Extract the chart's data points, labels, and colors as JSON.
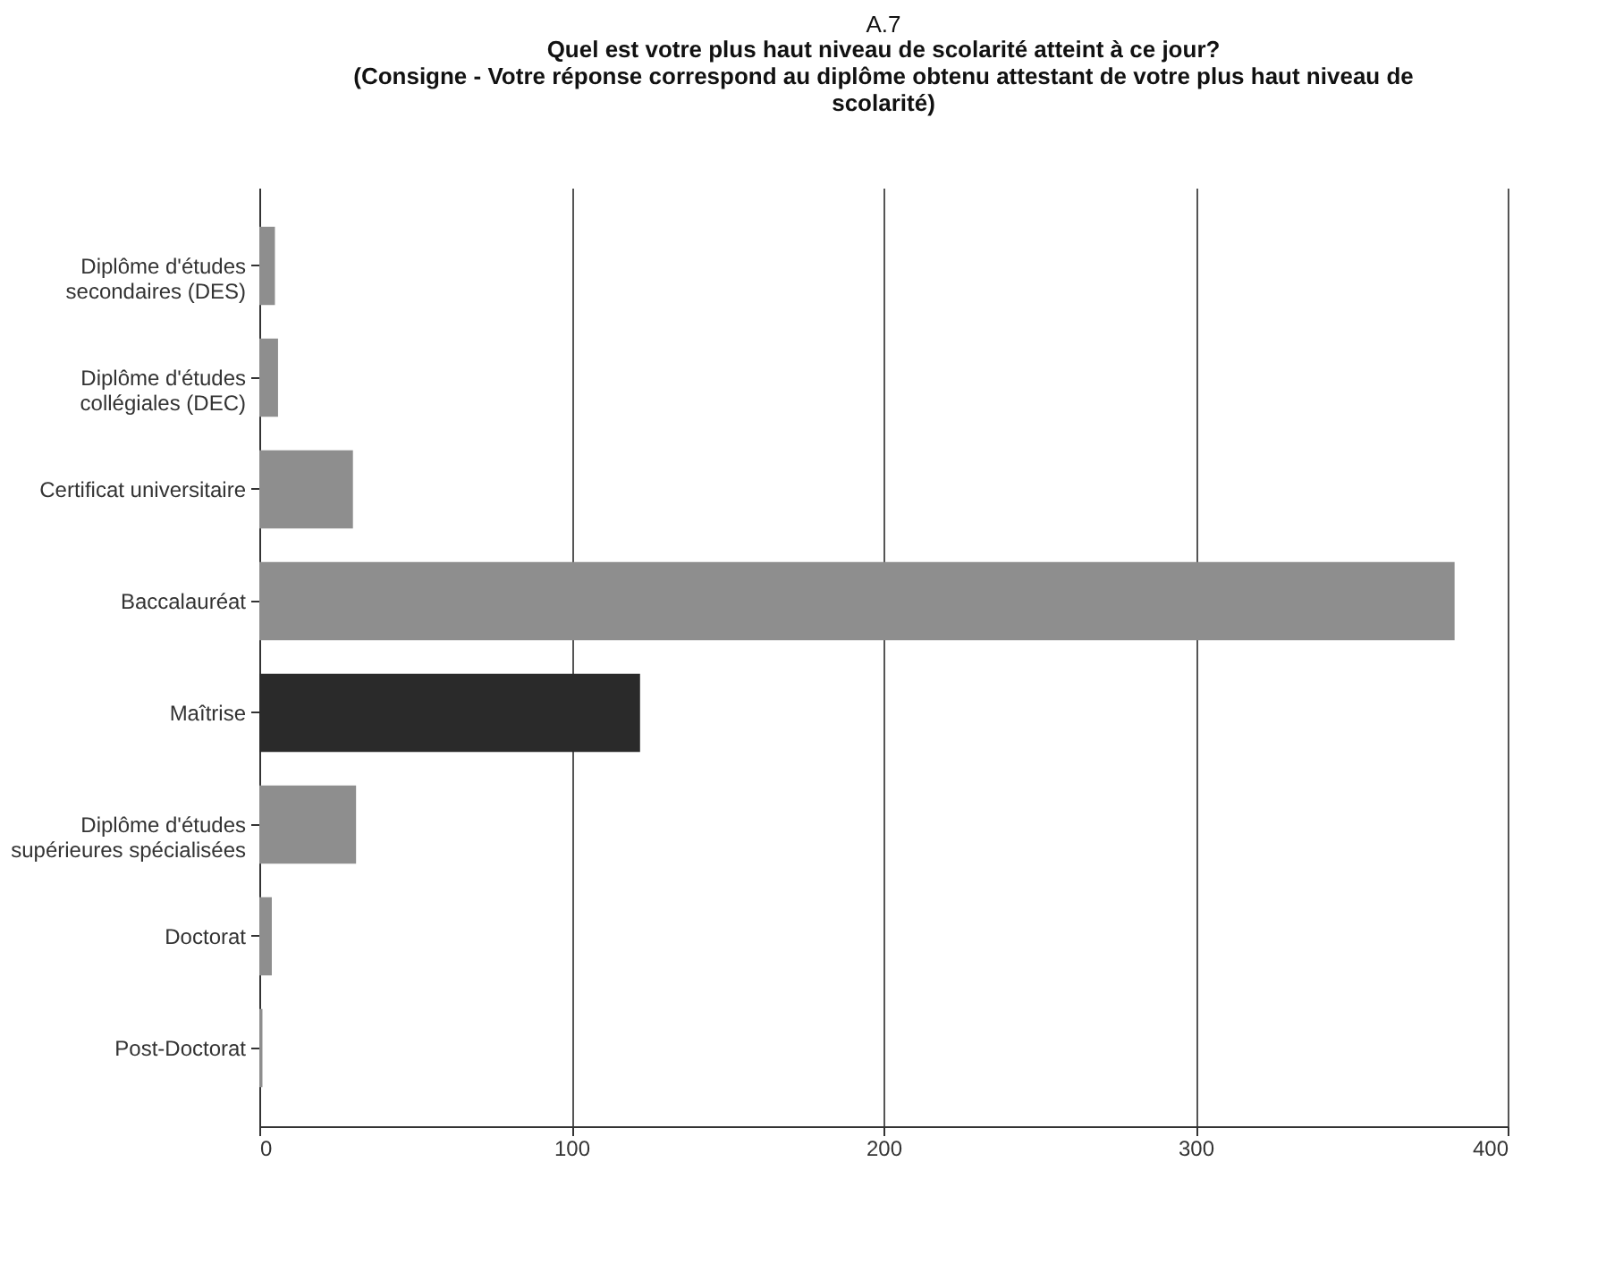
{
  "chart_data": {
    "type": "bar",
    "orientation": "horizontal",
    "title": "A.7",
    "subtitle": "Quel est votre plus haut niveau de scolarité atteint à ce jour?\n(Consigne - Votre réponse correspond au diplôme obtenu attestant de votre plus haut niveau de\nscolarité)",
    "categories": [
      "Diplôme d'études\nsecondaires (DES)",
      "Diplôme d'études\ncollégiales (DEC)",
      "Certificat universitaire",
      "Baccalauréat",
      "Maîtrise",
      "Diplôme d'études\nsupérieures spécialisées",
      "Doctorat",
      "Post-Doctorat"
    ],
    "values": [
      5,
      6,
      30,
      383,
      122,
      31,
      4,
      1
    ],
    "colors": [
      "#8e8e8e",
      "#8e8e8e",
      "#8e8e8e",
      "#8e8e8e",
      "#2a2a2a",
      "#8e8e8e",
      "#8e8e8e",
      "#8e8e8e"
    ],
    "xlim": [
      0,
      400
    ],
    "xticks": [
      0,
      100,
      200,
      300,
      400
    ],
    "grid": "x"
  }
}
